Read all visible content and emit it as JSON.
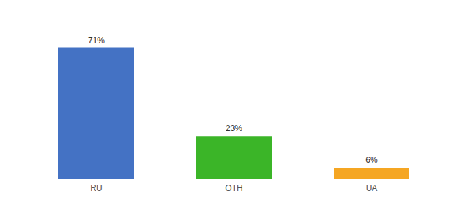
{
  "chart_data": {
    "type": "bar",
    "categories": [
      "RU",
      "OTH",
      "UA"
    ],
    "values": [
      71,
      23,
      6
    ],
    "value_labels": [
      "71%",
      "23%",
      "6%"
    ],
    "colors": [
      "#4472c4",
      "#3bb528",
      "#f5a623"
    ],
    "ylim": [
      0,
      82
    ],
    "data_labels": true,
    "tick_labels": "x",
    "grid": false
  }
}
